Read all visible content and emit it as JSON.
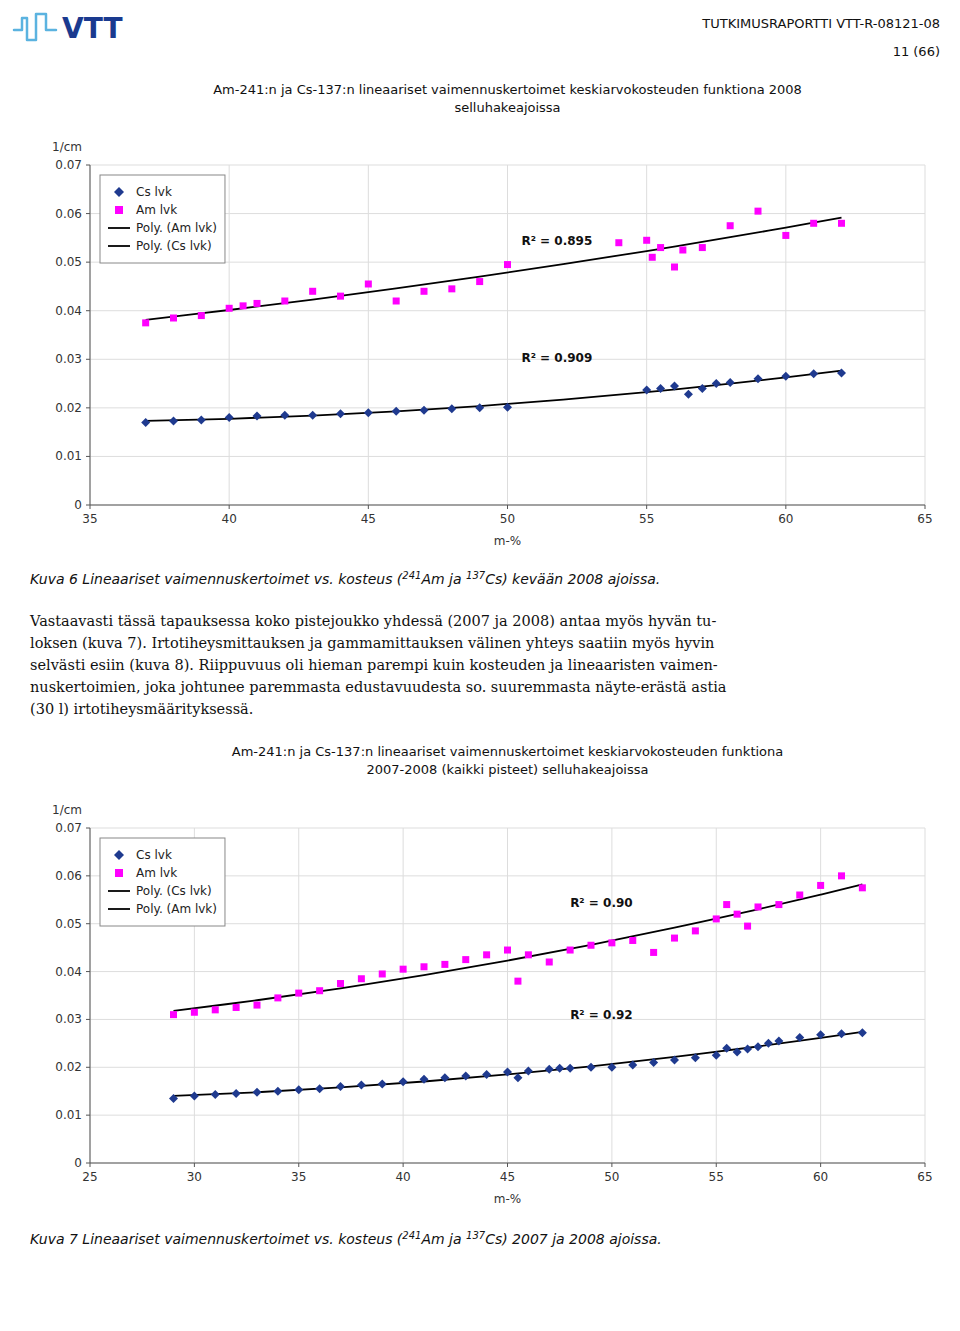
{
  "chart_data": [
    {
      "type": "scatter",
      "title": "Am-241:n ja Cs-137:n lineaariset vaimennuskertoimet keskiarvokosteuden funktiona 2008\nselluhakeajoissa",
      "xlabel": "m-%",
      "ylabel": "1/cm",
      "xlim": [
        35,
        65
      ],
      "ylim": [
        0,
        0.07
      ],
      "xticks": [
        35,
        40,
        45,
        50,
        55,
        60,
        65
      ],
      "yticks": [
        0,
        0.01,
        0.02,
        0.03,
        0.04,
        0.05,
        0.06,
        0.07
      ],
      "grid": true,
      "legend": "upper left",
      "series": [
        {
          "name": "Cs lvk",
          "type": "scatter",
          "marker": "diamond",
          "color": "#1F3A8F",
          "x": [
            37,
            38,
            39,
            40,
            41,
            42,
            43,
            44,
            45,
            46,
            47,
            48,
            49,
            50,
            55,
            55.5,
            56,
            56.5,
            57,
            57.5,
            58,
            59,
            60,
            61,
            62
          ],
          "values": [
            0.017,
            0.0173,
            0.0175,
            0.018,
            0.0183,
            0.0185,
            0.0185,
            0.0188,
            0.019,
            0.0193,
            0.0195,
            0.0198,
            0.02,
            0.0201,
            0.0237,
            0.024,
            0.0245,
            0.0228,
            0.024,
            0.025,
            0.0252,
            0.026,
            0.0265,
            0.027,
            0.0272
          ]
        },
        {
          "name": "Am lvk",
          "type": "scatter",
          "marker": "square",
          "color": "#FF00FF",
          "x": [
            37,
            38,
            39,
            40,
            40.5,
            41,
            42,
            43,
            44,
            45,
            46,
            47,
            48,
            49,
            50,
            54,
            55,
            55.2,
            55.5,
            56,
            56.3,
            57,
            58,
            59,
            60,
            61,
            62
          ],
          "values": [
            0.0375,
            0.0385,
            0.039,
            0.0405,
            0.041,
            0.0415,
            0.042,
            0.044,
            0.043,
            0.0455,
            0.042,
            0.044,
            0.0445,
            0.046,
            0.0495,
            0.054,
            0.0545,
            0.051,
            0.053,
            0.049,
            0.0525,
            0.053,
            0.0575,
            0.0605,
            0.0555,
            0.058,
            0.058
          ]
        },
        {
          "name": "Poly. (Am lvk)",
          "type": "line",
          "line_style": "solid",
          "color": "#000000",
          "x": [
            37,
            40,
            43,
            46,
            49,
            52,
            55,
            58,
            60,
            62
          ],
          "values": [
            0.038136,
            0.040144,
            0.042293,
            0.044581,
            0.04701,
            0.049579,
            0.052288,
            0.055137,
            0.057114,
            0.059154
          ]
        },
        {
          "name": "Poly. (Cs lvk)",
          "type": "line",
          "line_style": "solid",
          "color": "#000000",
          "x": [
            37,
            40,
            43,
            46,
            49,
            52,
            55,
            58,
            60,
            62
          ],
          "values": [
            0.017313,
            0.017748,
            0.018404,
            0.019281,
            0.020377,
            0.021694,
            0.023232,
            0.02499,
            0.026285,
            0.027677
          ]
        }
      ],
      "annotations": [
        {
          "text": "R² = 0.895",
          "x": 50.5,
          "y": 0.0535
        },
        {
          "text": "R² = 0.909",
          "x": 50.5,
          "y": 0.0295
        }
      ],
      "caption": [
        "Kuva 6 Lineaariset vaimennuskertoimet vs. kosteus (",
        "241",
        "Am ja ",
        "137",
        "Cs) kevään 2008 ajoissa."
      ]
    },
    {
      "type": "scatter",
      "title": "Am-241:n ja Cs-137:n lineaariset vaimennuskertoimet keskiarvokosteuden funktiona\n2007-2008 (kaikki pisteet) selluhakeajoissa",
      "xlabel": "m-%",
      "ylabel": "1/cm",
      "xlim": [
        25,
        65
      ],
      "ylim": [
        0,
        0.07
      ],
      "xticks": [
        25,
        30,
        35,
        40,
        45,
        50,
        55,
        60,
        65
      ],
      "yticks": [
        0,
        0.01,
        0.02,
        0.03,
        0.04,
        0.05,
        0.06,
        0.07
      ],
      "grid": true,
      "legend": "upper left",
      "series": [
        {
          "name": "Cs lvk",
          "type": "scatter",
          "marker": "diamond",
          "color": "#1F3A8F",
          "x": [
            29,
            30,
            31,
            32,
            33,
            34,
            35,
            36,
            37,
            38,
            39,
            40,
            41,
            42,
            43,
            44,
            45,
            45.5,
            46,
            47,
            47.5,
            48,
            49,
            50,
            51,
            52,
            53,
            54,
            55,
            55.5,
            56,
            56.5,
            57,
            57.5,
            58,
            59,
            60,
            61,
            62
          ],
          "values": [
            0.0135,
            0.014,
            0.0143,
            0.0145,
            0.0148,
            0.015,
            0.0153,
            0.0155,
            0.016,
            0.0163,
            0.0165,
            0.017,
            0.0175,
            0.0178,
            0.0182,
            0.0185,
            0.019,
            0.0178,
            0.0192,
            0.0196,
            0.0198,
            0.0198,
            0.02,
            0.02,
            0.0205,
            0.021,
            0.0215,
            0.022,
            0.0225,
            0.024,
            0.0232,
            0.0238,
            0.0243,
            0.025,
            0.0255,
            0.0262,
            0.0268,
            0.027,
            0.0272
          ]
        },
        {
          "name": "Am lvk",
          "type": "scatter",
          "marker": "square",
          "color": "#FF00FF",
          "x": [
            29,
            30,
            31,
            32,
            33,
            34,
            35,
            36,
            37,
            38,
            39,
            40,
            41,
            42,
            43,
            44,
            45,
            45.5,
            46,
            47,
            48,
            49,
            50,
            51,
            52,
            53,
            54,
            55,
            55.5,
            56,
            56.5,
            57,
            58,
            59,
            60,
            61,
            62
          ],
          "values": [
            0.031,
            0.0315,
            0.032,
            0.0325,
            0.033,
            0.0345,
            0.0355,
            0.036,
            0.0375,
            0.0385,
            0.0395,
            0.0405,
            0.041,
            0.0415,
            0.0425,
            0.0435,
            0.0445,
            0.038,
            0.0435,
            0.042,
            0.0445,
            0.0455,
            0.046,
            0.0465,
            0.044,
            0.047,
            0.0485,
            0.051,
            0.054,
            0.052,
            0.0495,
            0.0535,
            0.054,
            0.056,
            0.058,
            0.06,
            0.0575
          ]
        },
        {
          "name": "Poly. (Cs lvk)",
          "type": "line",
          "line_style": "solid",
          "color": "#000000",
          "x": [
            29,
            33,
            37,
            41,
            45,
            49,
            53,
            57,
            60,
            62
          ],
          "values": [
            0.014018,
            0.014784,
            0.015786,
            0.017025,
            0.0185,
            0.020211,
            0.022158,
            0.024341,
            0.026134,
            0.027402
          ]
        },
        {
          "name": "Poly. (Am lvk)",
          "type": "line",
          "line_style": "solid",
          "color": "#000000",
          "x": [
            29,
            33,
            37,
            41,
            45,
            49,
            53,
            57,
            60,
            62
          ],
          "values": [
            0.031791,
            0.03401,
            0.0365,
            0.039261,
            0.042293,
            0.045597,
            0.049172,
            0.053018,
            0.05608,
            0.058207
          ]
        }
      ],
      "annotations": [
        {
          "text": "R² = 0.90",
          "x": 48,
          "y": 0.0535
        },
        {
          "text": "R² = 0.92",
          "x": 48,
          "y": 0.03
        }
      ],
      "caption": [
        "Kuva 7 Lineaariset vaimennuskertoimet vs. kosteus (",
        "241",
        "Am ja ",
        "137",
        "Cs) 2007 ja 2008 ajoissa."
      ]
    }
  ],
  "page": {
    "logo": "VTT",
    "header_text": "TUTKIMUSRAPORTTI VTT-R-08121-08",
    "page_text": "11 (66)",
    "body_text": "Vastaavasti tässä tapauksessa koko pistejoukko yhdessä (2007 ja 2008) antaa myös hyvän tu-\nloksen (kuva 7). Irtotiheysmittauksen ja gammamittauksen välinen yhteys saatiin myös hyvin\nselvästi esiin (kuva 8). Riippuvuus oli hieman parempi kuin kosteuden ja lineaaristen vaimen-\nnuskertoimien, joka johtunee paremmasta edustavuudesta so. suuremmasta näyte-erästä astia\n(30 l) irtotiheysmäärityksessä."
  }
}
